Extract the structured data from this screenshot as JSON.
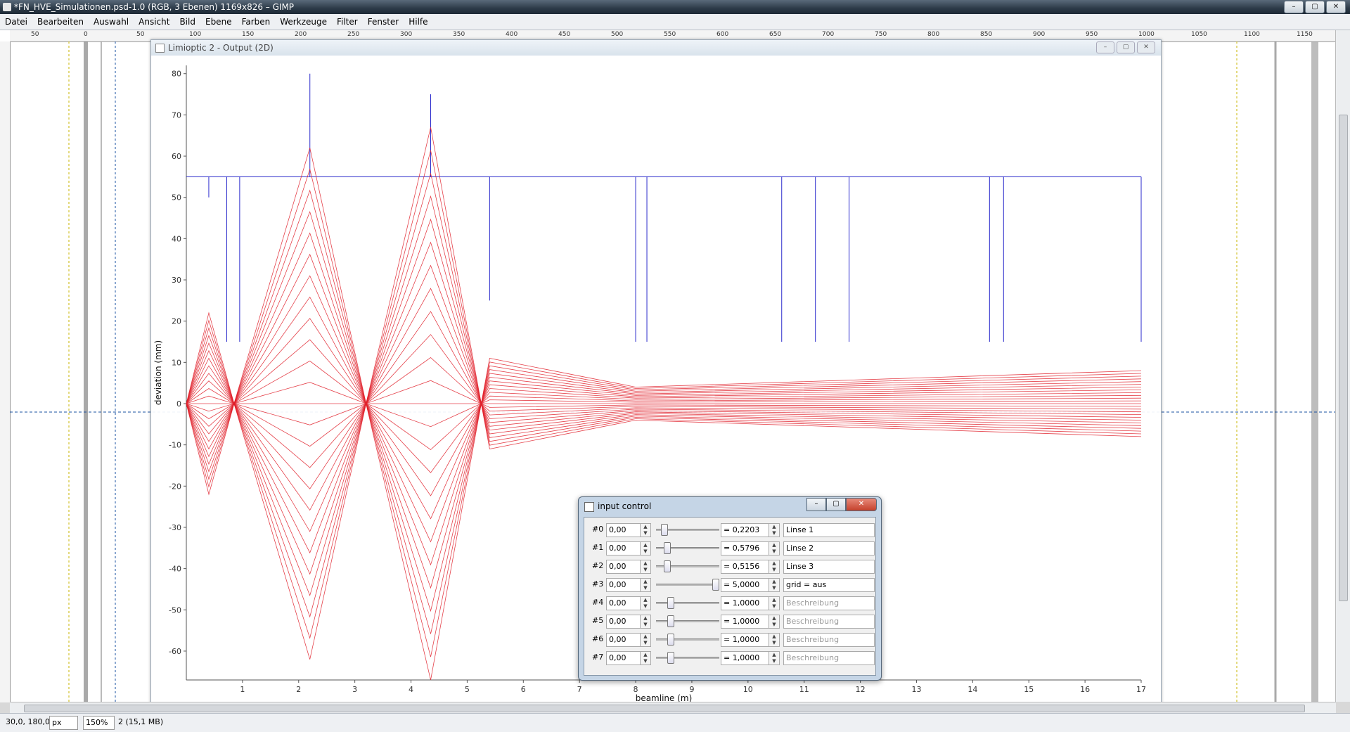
{
  "app": {
    "title": "*FN_HVE_Simulationen.psd-1.0 (RGB, 3 Ebenen) 1169x826 – GIMP",
    "window_buttons": [
      "–",
      "▢",
      "✕"
    ]
  },
  "menu": [
    "Datei",
    "Bearbeiten",
    "Auswahl",
    "Ansicht",
    "Bild",
    "Ebene",
    "Farben",
    "Werkzeuge",
    "Filter",
    "Fenster",
    "Hilfe"
  ],
  "ruler": {
    "h_labels": [
      "50",
      "0",
      "50",
      "100",
      "150",
      "200",
      "250",
      "300",
      "350",
      "400",
      "450",
      "500",
      "550",
      "600",
      "650",
      "700",
      "750",
      "800",
      "850",
      "900",
      "950",
      "1000",
      "1050",
      "1100",
      "1150"
    ]
  },
  "statusbar": {
    "coords": "30,0, 180,0",
    "unit": "px",
    "zoom": "150%",
    "info": "2 (15,1 MB)"
  },
  "plot_window": {
    "title": "Limioptic 2 - Output (2D)"
  },
  "chart_data": {
    "type": "line",
    "xlabel": "beamline (m)",
    "ylabel": "deviation (mm)",
    "xlim": [
      0,
      17
    ],
    "ylim": [
      -67,
      82
    ],
    "x_ticks": [
      1,
      2,
      3,
      4,
      5,
      6,
      7,
      8,
      9,
      10,
      11,
      12,
      13,
      14,
      15,
      16,
      17
    ],
    "y_ticks": [
      80,
      70,
      60,
      50,
      40,
      30,
      20,
      10,
      0,
      -10,
      -20,
      -30,
      -40,
      -50,
      -60
    ],
    "aperture_top": 55,
    "envelope": {
      "x": [
        0,
        0.4,
        0.85,
        2.2,
        3.2,
        4.35,
        5.25,
        5.4,
        8.0,
        17.0
      ],
      "y": [
        0,
        22,
        0,
        62,
        0,
        67,
        0,
        11,
        4,
        8
      ]
    },
    "color": "#e0202a",
    "aperture_color": "#2a2acc"
  },
  "input_control": {
    "title": "input control",
    "rows": [
      {
        "idx": "#0",
        "value": "0,00",
        "slider": 0.08,
        "result": "= 0,2203",
        "desc": "Linse 1",
        "placeholder": false
      },
      {
        "idx": "#1",
        "value": "0,00",
        "slider": 0.13,
        "result": "= 0,5796",
        "desc": "Linse 2",
        "placeholder": false
      },
      {
        "idx": "#2",
        "value": "0,00",
        "slider": 0.13,
        "result": "= 0,5156",
        "desc": "Linse 3",
        "placeholder": false
      },
      {
        "idx": "#3",
        "value": "0,00",
        "slider": 0.97,
        "result": "= 5,0000",
        "desc": "grid = aus",
        "placeholder": false
      },
      {
        "idx": "#4",
        "value": "0,00",
        "slider": 0.19,
        "result": "= 1,0000",
        "desc": "Beschreibung",
        "placeholder": true
      },
      {
        "idx": "#5",
        "value": "0,00",
        "slider": 0.19,
        "result": "= 1,0000",
        "desc": "Beschreibung",
        "placeholder": true
      },
      {
        "idx": "#6",
        "value": "0,00",
        "slider": 0.19,
        "result": "= 1,0000",
        "desc": "Beschreibung",
        "placeholder": true
      },
      {
        "idx": "#7",
        "value": "0,00",
        "slider": 0.19,
        "result": "= 1,0000",
        "desc": "Beschreibung",
        "placeholder": true
      }
    ]
  }
}
